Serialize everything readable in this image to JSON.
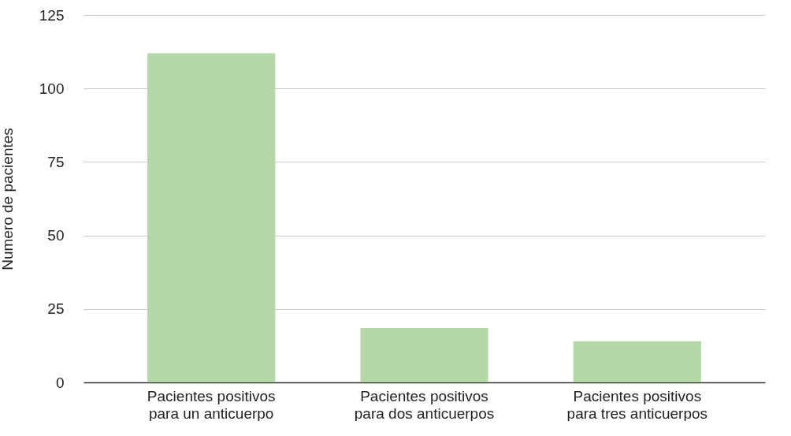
{
  "chart_data": {
    "type": "bar",
    "ylabel": "Numero de pacientes",
    "categories": [
      "Pacientes positivos\npara un anticuerpo",
      "Pacientes positivos\npara dos anticuerpos",
      "Pacientes positivos\npara tres anticuerpos"
    ],
    "values": [
      112,
      18.5,
      14
    ],
    "color": "#b6d7a8",
    "ylim": [
      0,
      125
    ],
    "yticks": [
      0,
      25,
      50,
      75,
      100,
      125
    ],
    "grid": "y"
  }
}
